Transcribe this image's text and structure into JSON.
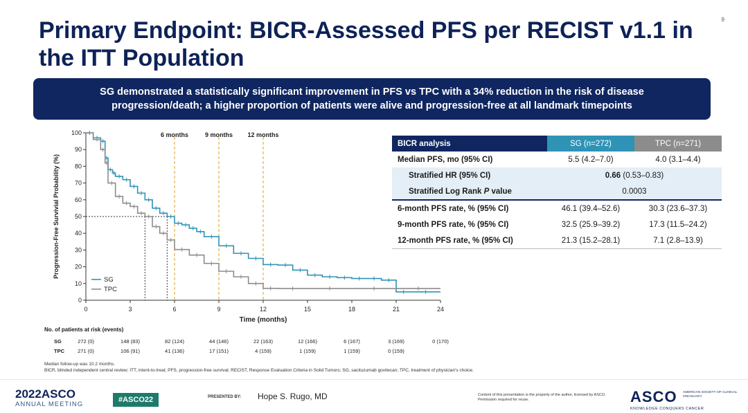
{
  "slide": {
    "page_number": "9",
    "title": "Primary Endpoint: BICR-Assessed PFS per RECIST v1.1 in the ITT Population",
    "banner": "SG demonstrated a statistically significant improvement in PFS vs TPC with a 34% reduction in the risk of disease progression/death; a higher proportion of patients were alive and progression-free at all landmark timepoints"
  },
  "chart_data": {
    "type": "line",
    "title": "",
    "xlabel": "Time (months)",
    "ylabel": "Progression-Free Survivial Probability (%)",
    "xlim": [
      0,
      24
    ],
    "ylim": [
      0,
      100
    ],
    "xticks": [
      0,
      3,
      6,
      9,
      12,
      15,
      18,
      21,
      24
    ],
    "yticks": [
      0,
      10,
      20,
      30,
      40,
      50,
      60,
      70,
      80,
      90,
      100
    ],
    "landmarks": [
      {
        "x": 6,
        "label": "6 months"
      },
      {
        "x": 9,
        "label": "9 months"
      },
      {
        "x": 12,
        "label": "12 months"
      }
    ],
    "median_reference": {
      "y": 50,
      "x_tpc": 4.0,
      "x_sg": 5.5
    },
    "legend": "bottom-left",
    "series": [
      {
        "name": "SG",
        "color": "#2f93b6",
        "x": [
          0,
          0.5,
          1.0,
          1.3,
          1.5,
          1.8,
          2.0,
          2.5,
          3.0,
          3.5,
          4.0,
          4.5,
          5.0,
          5.5,
          6.0,
          6.5,
          7.0,
          7.5,
          8.0,
          9.0,
          10.0,
          11.0,
          12.0,
          13.0,
          14.0,
          15.0,
          16.0,
          17.0,
          18.0,
          19.0,
          20.0,
          21.0,
          22.0,
          24.0
        ],
        "y": [
          100,
          97,
          95,
          85,
          78,
          76,
          74,
          72,
          68,
          64,
          60,
          55,
          52,
          50,
          46,
          45,
          43,
          41,
          38,
          32.5,
          28,
          25,
          21.3,
          21,
          18,
          15,
          14,
          13.5,
          13,
          13,
          12,
          5,
          5,
          5
        ]
      },
      {
        "name": "TPC",
        "color": "#8c8c8c",
        "x": [
          0,
          0.5,
          1.0,
          1.3,
          1.5,
          2.0,
          2.5,
          3.0,
          3.5,
          4.0,
          4.5,
          5.0,
          5.5,
          6.0,
          7.0,
          8.0,
          9.0,
          10.0,
          11.0,
          12.0,
          13.0,
          15.0,
          18.0,
          21.0,
          24.0
        ],
        "y": [
          100,
          96,
          90,
          82,
          70,
          62,
          58,
          56,
          52,
          50,
          44,
          40,
          36,
          30.3,
          27,
          22,
          17.3,
          14,
          10,
          7.1,
          7,
          7,
          7,
          7,
          7
        ]
      }
    ]
  },
  "at_risk": {
    "title": "No. of patients at risk (events)",
    "rows": [
      {
        "label": "SG",
        "values": [
          "272 (0)",
          "148 (83)",
          "82 (124)",
          "44 (146)",
          "22 (163)",
          "12 (166)",
          "6 (167)",
          "3 (169)",
          "0 (170)"
        ]
      },
      {
        "label": "TPC",
        "values": [
          "271 (0)",
          "106 (91)",
          "41 (136)",
          "17 (151)",
          "4 (159)",
          "1 (159)",
          "1 (159)",
          "0 (159)",
          ""
        ]
      }
    ]
  },
  "notes": {
    "followup": "Median follow-up was 10.2 months.",
    "abbreviations": "BICR, blinded independent central review; ITT, intent-to-treat; PFS, progression-free survival; RECIST, Response Evaluation Criteria in Solid Tumors; SG, sacituzumab govitecan; TPC, treatment of physician's choice."
  },
  "table": {
    "header": {
      "label": "BICR analysis",
      "sg": "SG (n=272)",
      "tpc": "TPC (n=271)"
    },
    "rows": [
      {
        "label": "Median PFS, mo (95% CI)",
        "sg": "5.5 (4.2–7.0)",
        "tpc": "4.0 (3.1–4.4)"
      },
      {
        "label": "Stratified HR (95% CI)",
        "hr_bold": "0.66",
        "hr_ci": "(0.53–0.83)"
      },
      {
        "label_pre": "Stratified Log Rank ",
        "label_p": "P",
        "label_post": " value",
        "value": "0.0003"
      },
      {
        "label": "6-month PFS rate, % (95% CI)",
        "sg": "46.1 (39.4–52.6)",
        "tpc": "30.3 (23.6–37.3)"
      },
      {
        "label": "9-month PFS rate, % (95% CI)",
        "sg": "32.5 (25.9–39.2)",
        "tpc": "17.3 (11.5–24.2)"
      },
      {
        "label": "12-month PFS rate, % (95% CI)",
        "sg": "21.3 (15.2–28.1)",
        "tpc": "7.1 (2.8–13.9)"
      }
    ]
  },
  "footer": {
    "year": "2022",
    "asco": "ASCO",
    "meeting": "ANNUAL MEETING",
    "hashtag": "#ASCO22",
    "presented_by": "PRESENTED BY:",
    "presenter": "Hope S. Rugo, MD",
    "content_note": "Content of this presentation is the property of the author, licensed by ASCO. Permission required for reuse.",
    "asco_logo": "ASCO",
    "society": "AMERICAN SOCIETY OF CLINICAL ONCOLOGY",
    "tagline": "KNOWLEDGE CONQUERS CANCER"
  }
}
